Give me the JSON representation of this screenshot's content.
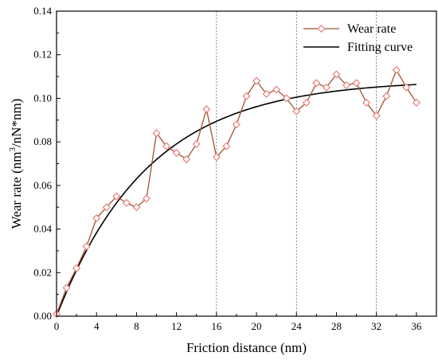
{
  "chart_data": {
    "type": "line",
    "xlabel": "Friction distance (nm)",
    "ylabel_parts": [
      "Wear rate (nm",
      "3",
      "/nN*nm)"
    ],
    "xlim": [
      0,
      38
    ],
    "ylim": [
      0,
      0.14
    ],
    "xticks": [
      0,
      4,
      8,
      12,
      16,
      20,
      24,
      28,
      32,
      36
    ],
    "yticks": [
      0.0,
      0.02,
      0.04,
      0.06,
      0.08,
      0.1,
      0.12,
      0.14
    ],
    "ytick_labels": [
      "0.00",
      "0.02",
      "0.04",
      "0.06",
      "0.08",
      "0.10",
      "0.12",
      "0.14"
    ],
    "reference_lines_x": [
      16,
      24,
      32
    ],
    "legend_position": "top-right",
    "series": [
      {
        "name": "Wear rate",
        "color": "#a0522d",
        "marker_color": "#e8807a",
        "marker": "diamond-open",
        "x": [
          0,
          1,
          2,
          3,
          4,
          5,
          6,
          7,
          8,
          9,
          10,
          11,
          12,
          13,
          14,
          15,
          16,
          17,
          18,
          19,
          20,
          21,
          22,
          23,
          24,
          25,
          26,
          27,
          28,
          29,
          30,
          31,
          32,
          33,
          34,
          35,
          36
        ],
        "y": [
          0.001,
          0.013,
          0.022,
          0.032,
          0.045,
          0.05,
          0.055,
          0.052,
          0.05,
          0.054,
          0.084,
          0.078,
          0.075,
          0.072,
          0.079,
          0.095,
          0.073,
          0.078,
          0.088,
          0.101,
          0.108,
          0.102,
          0.104,
          0.1,
          0.094,
          0.098,
          0.107,
          0.105,
          0.111,
          0.106,
          0.107,
          0.098,
          0.092,
          0.101,
          0.113,
          0.105,
          0.098
        ]
      },
      {
        "name": "Fitting curve",
        "color": "#000000",
        "function": "a*(1-exp(-x/t))",
        "a": 0.1085,
        "t": 9.2,
        "x_range": [
          0,
          36
        ]
      }
    ]
  }
}
